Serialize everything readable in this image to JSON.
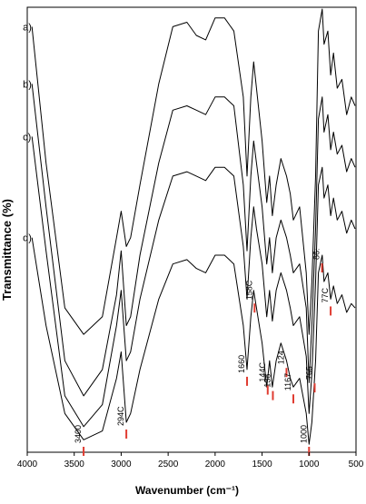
{
  "chart_data": {
    "type": "line",
    "xlabel": "Wavenumber (cm⁻¹)",
    "ylabel": "Transmittance (%)",
    "xlim": [
      4000,
      500
    ],
    "x_reversed": true,
    "x_ticks": [
      "4000",
      "3500",
      "3000",
      "2500",
      "2000",
      "1500",
      "1000",
      "500"
    ],
    "grid": false,
    "legend": "none",
    "series": [
      {
        "name": "a)",
        "points": [
          [
            3950,
            0.04
          ],
          [
            3800,
            0.35
          ],
          [
            3600,
            0.68
          ],
          [
            3400,
            0.74
          ],
          [
            3200,
            0.7
          ],
          [
            3050,
            0.52
          ],
          [
            3000,
            0.46
          ],
          [
            2945,
            0.54
          ],
          [
            2900,
            0.52
          ],
          [
            2800,
            0.4
          ],
          [
            2600,
            0.17
          ],
          [
            2450,
            0.04
          ],
          [
            2300,
            0.03
          ],
          [
            2200,
            0.06
          ],
          [
            2100,
            0.07
          ],
          [
            2000,
            0.02
          ],
          [
            1900,
            0.02
          ],
          [
            1800,
            0.05
          ],
          [
            1700,
            0.2
          ],
          [
            1660,
            0.38
          ],
          [
            1620,
            0.2
          ],
          [
            1590,
            0.12
          ],
          [
            1560,
            0.18
          ],
          [
            1500,
            0.3
          ],
          [
            1450,
            0.44
          ],
          [
            1420,
            0.38
          ],
          [
            1390,
            0.47
          ],
          [
            1350,
            0.4
          ],
          [
            1300,
            0.34
          ],
          [
            1240,
            0.38
          ],
          [
            1200,
            0.42
          ],
          [
            1167,
            0.48
          ],
          [
            1100,
            0.45
          ],
          [
            1030,
            0.6
          ],
          [
            1000,
            0.74
          ],
          [
            970,
            0.62
          ],
          [
            930,
            0.38
          ],
          [
            900,
            0.05
          ],
          [
            860,
            0.0
          ],
          [
            840,
            0.08
          ],
          [
            800,
            0.05
          ],
          [
            770,
            0.15
          ],
          [
            740,
            0.1
          ],
          [
            700,
            0.18
          ],
          [
            650,
            0.16
          ],
          [
            600,
            0.24
          ],
          [
            550,
            0.2
          ],
          [
            510,
            0.22
          ]
        ]
      },
      {
        "name": "b)",
        "points": [
          [
            3950,
            0.17
          ],
          [
            3800,
            0.45
          ],
          [
            3600,
            0.8
          ],
          [
            3400,
            0.88
          ],
          [
            3200,
            0.82
          ],
          [
            3050,
            0.65
          ],
          [
            3000,
            0.55
          ],
          [
            2945,
            0.72
          ],
          [
            2900,
            0.7
          ],
          [
            2800,
            0.56
          ],
          [
            2600,
            0.35
          ],
          [
            2450,
            0.23
          ],
          [
            2300,
            0.22
          ],
          [
            2200,
            0.23
          ],
          [
            2100,
            0.24
          ],
          [
            2000,
            0.2
          ],
          [
            1900,
            0.2
          ],
          [
            1800,
            0.22
          ],
          [
            1700,
            0.4
          ],
          [
            1660,
            0.55
          ],
          [
            1620,
            0.38
          ],
          [
            1590,
            0.3
          ],
          [
            1560,
            0.35
          ],
          [
            1500,
            0.45
          ],
          [
            1450,
            0.58
          ],
          [
            1420,
            0.52
          ],
          [
            1390,
            0.6
          ],
          [
            1350,
            0.52
          ],
          [
            1300,
            0.48
          ],
          [
            1240,
            0.52
          ],
          [
            1200,
            0.56
          ],
          [
            1167,
            0.6
          ],
          [
            1100,
            0.58
          ],
          [
            1030,
            0.68
          ],
          [
            1000,
            0.85
          ],
          [
            970,
            0.72
          ],
          [
            930,
            0.5
          ],
          [
            900,
            0.25
          ],
          [
            860,
            0.2
          ],
          [
            840,
            0.28
          ],
          [
            800,
            0.24
          ],
          [
            770,
            0.32
          ],
          [
            740,
            0.28
          ],
          [
            700,
            0.33
          ],
          [
            650,
            0.31
          ],
          [
            600,
            0.37
          ],
          [
            550,
            0.34
          ],
          [
            510,
            0.36
          ]
        ]
      },
      {
        "name": "c)",
        "points": [
          [
            3950,
            0.29
          ],
          [
            3800,
            0.55
          ],
          [
            3600,
            0.88
          ],
          [
            3400,
            0.95
          ],
          [
            3200,
            0.9
          ],
          [
            3050,
            0.72
          ],
          [
            3000,
            0.64
          ],
          [
            2945,
            0.8
          ],
          [
            2900,
            0.78
          ],
          [
            2800,
            0.66
          ],
          [
            2600,
            0.48
          ],
          [
            2450,
            0.38
          ],
          [
            2300,
            0.37
          ],
          [
            2200,
            0.38
          ],
          [
            2100,
            0.39
          ],
          [
            2000,
            0.36
          ],
          [
            1900,
            0.36
          ],
          [
            1800,
            0.38
          ],
          [
            1700,
            0.54
          ],
          [
            1660,
            0.66
          ],
          [
            1620,
            0.52
          ],
          [
            1590,
            0.45
          ],
          [
            1560,
            0.5
          ],
          [
            1500,
            0.58
          ],
          [
            1450,
            0.7
          ],
          [
            1420,
            0.64
          ],
          [
            1390,
            0.71
          ],
          [
            1350,
            0.64
          ],
          [
            1300,
            0.6
          ],
          [
            1240,
            0.64
          ],
          [
            1200,
            0.68
          ],
          [
            1167,
            0.72
          ],
          [
            1100,
            0.7
          ],
          [
            1030,
            0.79
          ],
          [
            1000,
            0.92
          ],
          [
            970,
            0.83
          ],
          [
            930,
            0.62
          ],
          [
            900,
            0.4
          ],
          [
            860,
            0.36
          ],
          [
            840,
            0.43
          ],
          [
            800,
            0.4
          ],
          [
            770,
            0.47
          ],
          [
            740,
            0.43
          ],
          [
            700,
            0.48
          ],
          [
            650,
            0.46
          ],
          [
            600,
            0.51
          ],
          [
            550,
            0.48
          ],
          [
            510,
            0.5
          ]
        ]
      },
      {
        "name": "d)",
        "points": [
          [
            3950,
            0.52
          ],
          [
            3800,
            0.72
          ],
          [
            3600,
            0.92
          ],
          [
            3400,
            0.98
          ],
          [
            3200,
            0.96
          ],
          [
            3050,
            0.84
          ],
          [
            3000,
            0.78
          ],
          [
            2945,
            0.94
          ],
          [
            2900,
            0.92
          ],
          [
            2800,
            0.82
          ],
          [
            2600,
            0.66
          ],
          [
            2450,
            0.58
          ],
          [
            2300,
            0.57
          ],
          [
            2200,
            0.59
          ],
          [
            2100,
            0.6
          ],
          [
            2000,
            0.56
          ],
          [
            1900,
            0.56
          ],
          [
            1800,
            0.58
          ],
          [
            1700,
            0.72
          ],
          [
            1660,
            0.82
          ],
          [
            1620,
            0.7
          ],
          [
            1590,
            0.64
          ],
          [
            1560,
            0.68
          ],
          [
            1500,
            0.76
          ],
          [
            1450,
            0.86
          ],
          [
            1420,
            0.8
          ],
          [
            1390,
            0.86
          ],
          [
            1350,
            0.8
          ],
          [
            1300,
            0.76
          ],
          [
            1240,
            0.8
          ],
          [
            1200,
            0.84
          ],
          [
            1167,
            0.86
          ],
          [
            1100,
            0.84
          ],
          [
            1030,
            0.92
          ],
          [
            1000,
            0.99
          ],
          [
            970,
            0.94
          ],
          [
            930,
            0.8
          ],
          [
            900,
            0.6
          ],
          [
            860,
            0.56
          ],
          [
            840,
            0.62
          ],
          [
            800,
            0.6
          ],
          [
            770,
            0.66
          ],
          [
            740,
            0.63
          ],
          [
            700,
            0.67
          ],
          [
            650,
            0.65
          ],
          [
            600,
            0.69
          ],
          [
            550,
            0.67
          ],
          [
            510,
            0.68
          ]
        ]
      }
    ],
    "annotations": [
      {
        "label": "3400",
        "x": 3400
      },
      {
        "label": "294C",
        "x": 2945
      },
      {
        "label": "1660",
        "x": 1660
      },
      {
        "label": "158C",
        "x": 1580
      },
      {
        "label": "144C",
        "x": 1440
      },
      {
        "label": "138",
        "x": 1385
      },
      {
        "label": "124",
        "x": 1240
      },
      {
        "label": "1167",
        "x": 1167
      },
      {
        "label": "1000",
        "x": 1000
      },
      {
        "label": "765",
        "x": 940
      },
      {
        "label": "86:",
        "x": 862
      },
      {
        "label": "77C",
        "x": 770
      }
    ],
    "marker_color": "#e03c31",
    "line_color": "#000000"
  }
}
